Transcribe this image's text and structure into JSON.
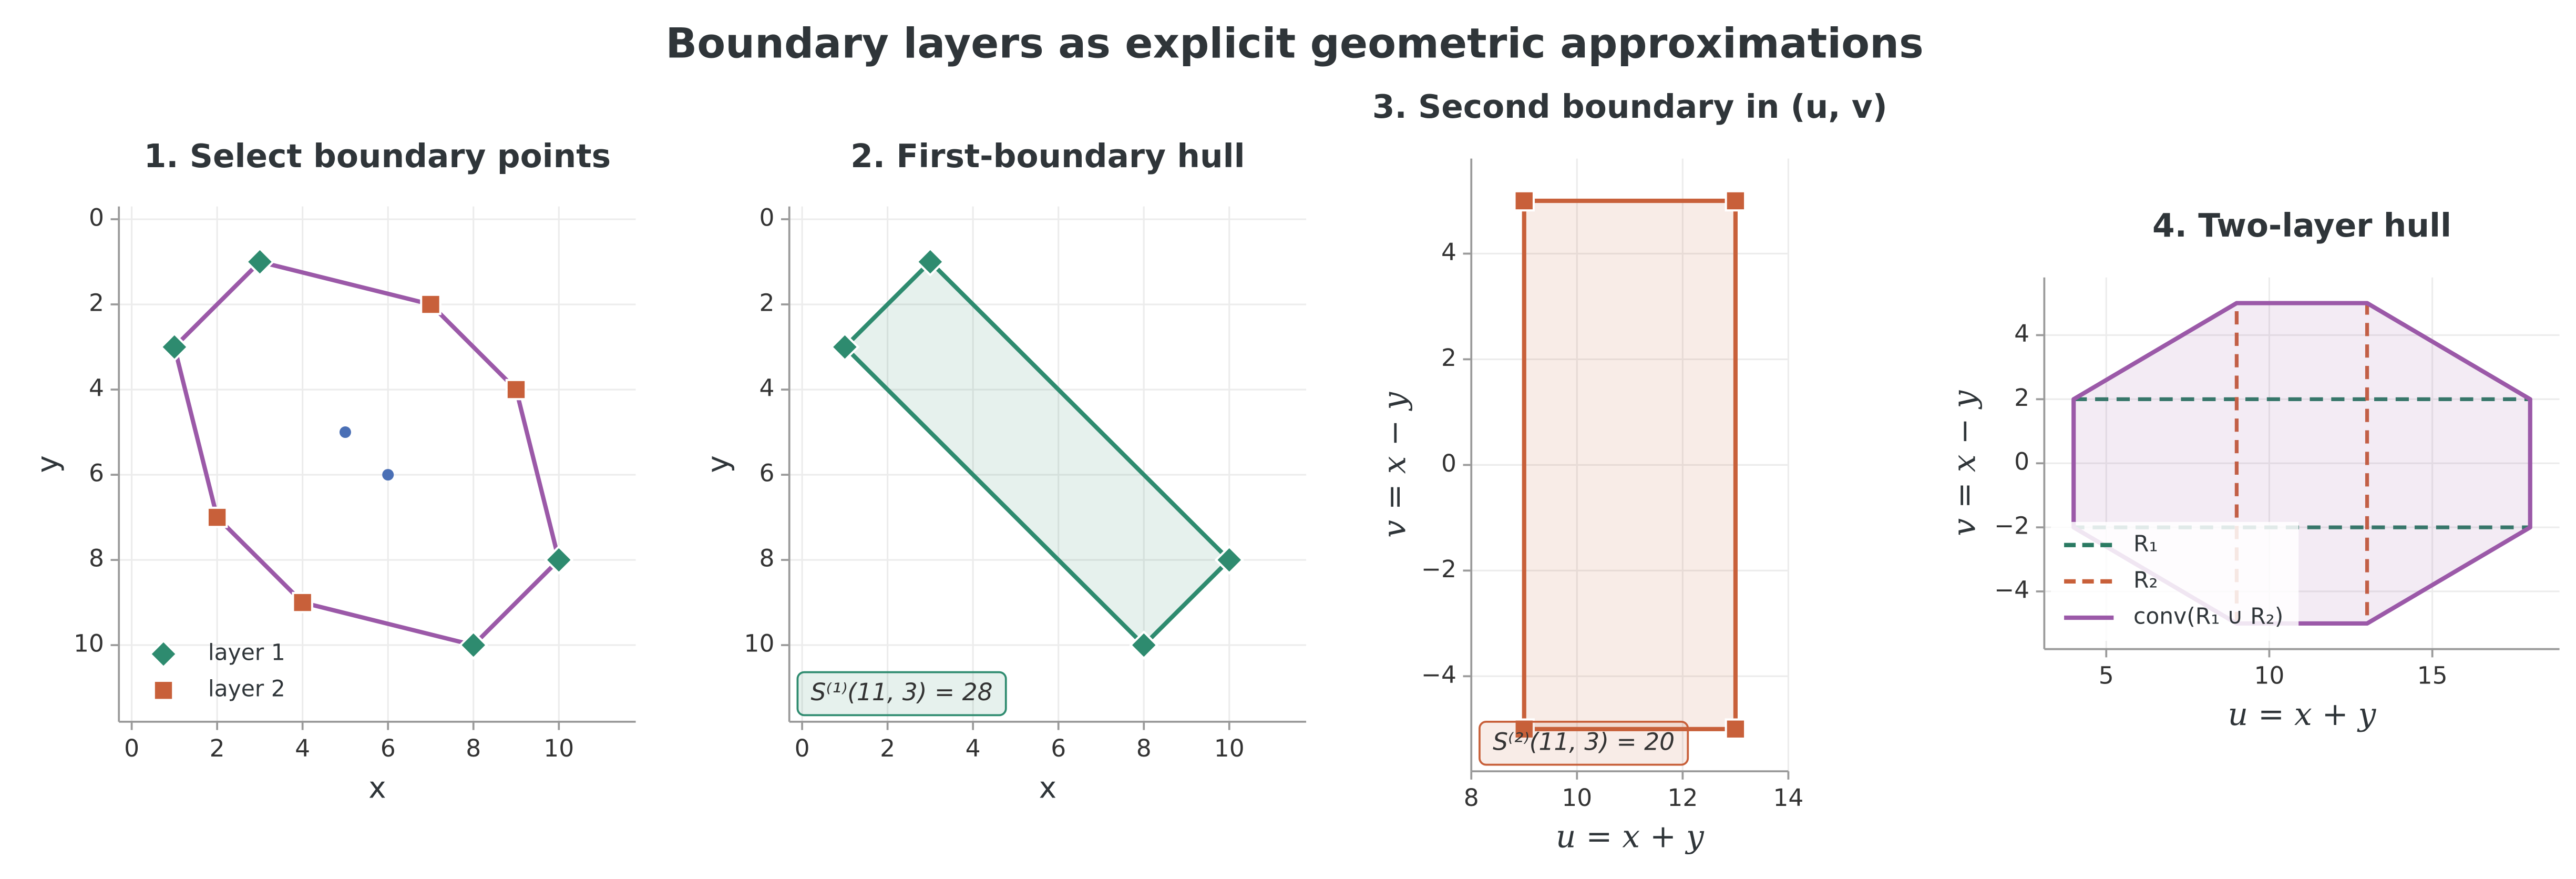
{
  "title": "Boundary layers as explicit geometric approximations",
  "chart_data": [
    {
      "type": "scatter",
      "title": "1. Select boundary points",
      "xlabel": "x",
      "ylabel": "y",
      "xlim": [
        -0.3,
        11.8
      ],
      "ylim": [
        11.8,
        -0.3
      ],
      "xticks": [
        0,
        2,
        4,
        6,
        8,
        10
      ],
      "yticks": [
        0,
        2,
        4,
        6,
        8,
        10
      ],
      "grid": true,
      "legend": "lower left",
      "series": [
        {
          "mode": "polygon",
          "color": "#9b59a8",
          "x": [
            3,
            7,
            9,
            10,
            8,
            4,
            2,
            1
          ],
          "values": [
            1,
            2,
            4,
            8,
            10,
            9,
            7,
            3
          ]
        },
        {
          "mode": "markers",
          "marker": "circle",
          "color": "#4a6fb5",
          "x": [
            5,
            6
          ],
          "values": [
            5,
            6
          ]
        },
        {
          "name": "layer 1",
          "mode": "markers",
          "marker": "diamond",
          "color": "#2e8b6f",
          "x": [
            1,
            3,
            10,
            8
          ],
          "values": [
            3,
            1,
            8,
            10
          ]
        },
        {
          "name": "layer 2",
          "mode": "markers",
          "marker": "square",
          "color": "#c8603a",
          "x": [
            7,
            9,
            2,
            4
          ],
          "values": [
            2,
            4,
            7,
            9
          ]
        }
      ]
    },
    {
      "type": "scatter",
      "title": "2. First-boundary hull",
      "xlabel": "x",
      "ylabel": "y",
      "xlim": [
        -0.3,
        11.8
      ],
      "ylim": [
        11.8,
        -0.3
      ],
      "xticks": [
        0,
        2,
        4,
        6,
        8,
        10
      ],
      "yticks": [
        0,
        2,
        4,
        6,
        8,
        10
      ],
      "grid": true,
      "annotation": "S⁽¹⁾(11, 3) = 28",
      "annotation_color": "#2e8b6f",
      "series": [
        {
          "mode": "polygon",
          "fill": true,
          "color": "#2e8b6f",
          "x": [
            3,
            10,
            8,
            1
          ],
          "values": [
            1,
            8,
            10,
            3
          ]
        },
        {
          "mode": "markers",
          "marker": "diamond",
          "color": "#2e8b6f",
          "x": [
            1,
            3,
            10,
            8
          ],
          "values": [
            3,
            1,
            8,
            10
          ]
        }
      ]
    },
    {
      "type": "scatter",
      "title": "3. Second boundary in (u, v)",
      "xlabel": "u = x + y",
      "ylabel": "v = x − y",
      "math_labels": true,
      "xlim": [
        8,
        14
      ],
      "ylim": [
        -5.8,
        5.8
      ],
      "xticks": [
        8,
        10,
        12,
        14
      ],
      "yticks": [
        {
          "value": -4,
          "label": "−4"
        },
        {
          "value": -2,
          "label": "−2"
        },
        0,
        2,
        4
      ],
      "grid": true,
      "annotation": "S⁽²⁾(11, 3) = 20",
      "annotation_color": "#c8603a",
      "series": [
        {
          "mode": "polygon",
          "fill": true,
          "color": "#c8603a",
          "x": [
            9,
            13,
            13,
            9
          ],
          "values": [
            5,
            5,
            -5,
            -5
          ]
        },
        {
          "mode": "markers",
          "marker": "square",
          "color": "#c8603a",
          "x": [
            9,
            13,
            13,
            9
          ],
          "values": [
            5,
            5,
            -5,
            -5
          ]
        }
      ]
    },
    {
      "type": "scatter",
      "title": "4. Two-layer hull",
      "xlabel": "u = x + y",
      "ylabel": "v = x − y",
      "math_labels": true,
      "xlim": [
        3.1,
        18.9
      ],
      "ylim": [
        -5.8,
        5.8
      ],
      "xticks": [
        5,
        10,
        15
      ],
      "yticks": [
        {
          "value": -4,
          "label": "−4"
        },
        {
          "value": -2,
          "label": "−2"
        },
        0,
        2,
        4
      ],
      "grid": true,
      "legend": "lower left",
      "legend_frame": true,
      "series": [
        {
          "name": "R₁",
          "mode": "polygon",
          "dash": true,
          "color": "#2a7a62",
          "x": [
            4,
            18,
            18,
            4
          ],
          "values": [
            2,
            2,
            -2,
            -2
          ]
        },
        {
          "name": "R₂",
          "mode": "polygon",
          "dash": true,
          "color": "#c8603a",
          "x": [
            9,
            13,
            13,
            9
          ],
          "values": [
            5,
            5,
            -5,
            -5
          ]
        },
        {
          "name": "conv(R₁ ∪ R₂)",
          "mode": "polygon",
          "fill": true,
          "color": "#9b59a8",
          "x": [
            4,
            9,
            13,
            18,
            18,
            13,
            9,
            4
          ],
          "values": [
            2,
            5,
            5,
            2,
            -2,
            -5,
            -5,
            -2
          ]
        }
      ]
    }
  ]
}
